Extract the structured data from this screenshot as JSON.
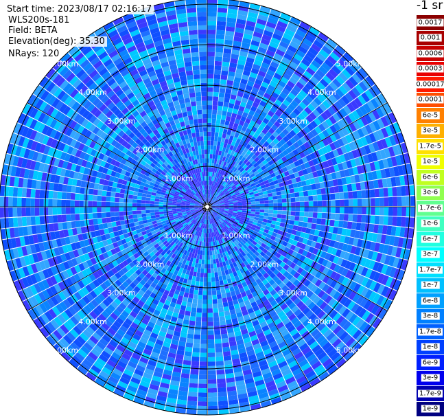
{
  "header": {
    "start_time": "Start time: 2023/08/17 02:16:17",
    "instrument": "WLS200s-181",
    "field": "Field: BETA",
    "elevation": "Elevation(deg): 35.30",
    "nrays": "NRays: 120"
  },
  "colorbar": {
    "unit_label": "-1 sr",
    "entries": [
      {
        "label": "0.0017",
        "color": "#8b0000"
      },
      {
        "label": "0.001",
        "color": "#a80000"
      },
      {
        "label": "0.0006",
        "color": "#c80000"
      },
      {
        "label": "0.0003",
        "color": "#e80000"
      },
      {
        "label": "0.00017",
        "color": "#ff1a00"
      },
      {
        "label": "0.0001",
        "color": "#ff4d00"
      },
      {
        "label": "6e-5",
        "color": "#ff8000"
      },
      {
        "label": "3e-5",
        "color": "#ffb000"
      },
      {
        "label": "1.7e-5",
        "color": "#ffe000"
      },
      {
        "label": "1e-5",
        "color": "#f0ff00"
      },
      {
        "label": "6e-6",
        "color": "#c0ff20"
      },
      {
        "label": "3e-6",
        "color": "#90ff50"
      },
      {
        "label": "1.7e-6",
        "color": "#60ff90"
      },
      {
        "label": "1e-6",
        "color": "#40ffc0"
      },
      {
        "label": "6e-7",
        "color": "#20ffe0"
      },
      {
        "label": "3e-7",
        "color": "#00ffff"
      },
      {
        "label": "1.7e-7",
        "color": "#00e0ff"
      },
      {
        "label": "1e-7",
        "color": "#00c0ff"
      },
      {
        "label": "6e-8",
        "color": "#00a0ff"
      },
      {
        "label": "3e-8",
        "color": "#0080ff"
      },
      {
        "label": "1.7e-8",
        "color": "#0060ff"
      },
      {
        "label": "1e-8",
        "color": "#0040ff"
      },
      {
        "label": "6e-9",
        "color": "#0020ff"
      },
      {
        "label": "3e-9",
        "color": "#0000ee"
      },
      {
        "label": "1.7e-9",
        "color": "#0000b0"
      },
      {
        "label": "1e-9",
        "color": "#000080"
      }
    ]
  },
  "chart_data": {
    "type": "heatmap",
    "projection": "polar",
    "rays": 120,
    "range_rings_km": [
      1,
      2,
      3,
      4,
      5
    ],
    "range_labels": [
      "1.00km",
      "2.00km",
      "3.00km",
      "4.00km",
      "5.00km"
    ],
    "label_azimuths_deg": [
      45,
      135,
      225,
      315
    ],
    "grid_spokes_deg": [
      0,
      30,
      60,
      90,
      120,
      150,
      180,
      210,
      240,
      270,
      300,
      330
    ],
    "dominant_colors": [
      "#0a84ff",
      "#1e6fff",
      "#33a6ff",
      "#00c8ff",
      "#3a3aff",
      "#1050ff"
    ]
  }
}
